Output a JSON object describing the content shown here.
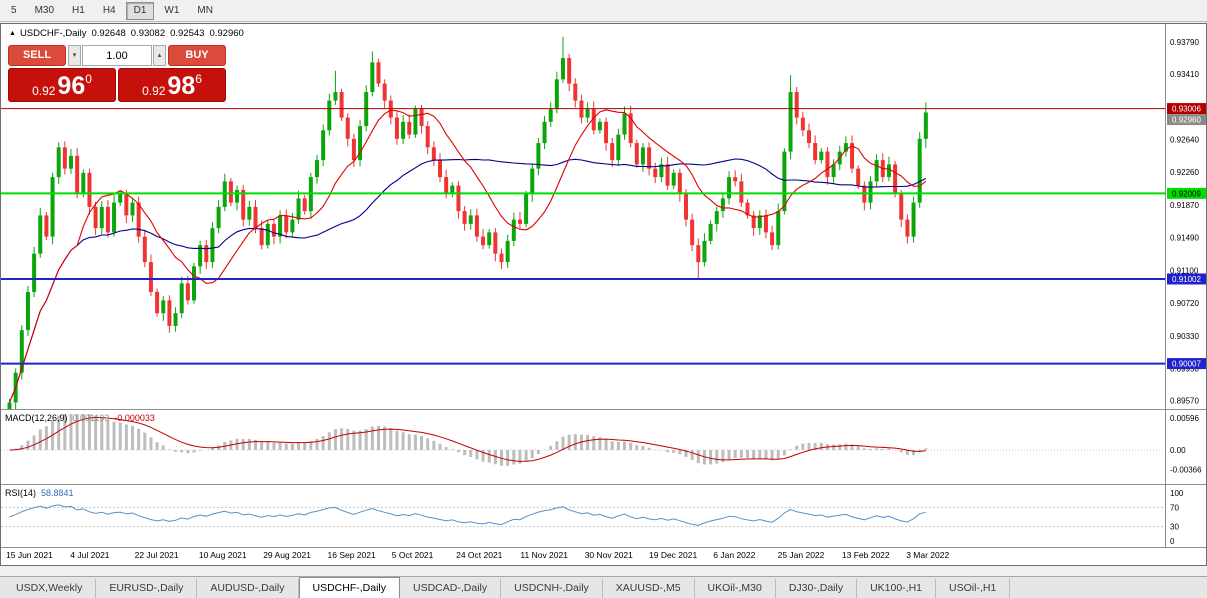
{
  "toolbar": {
    "timeframes": [
      "5",
      "M30",
      "H1",
      "H4",
      "D1",
      "W1",
      "MN"
    ],
    "active_timeframe": "D1"
  },
  "header": {
    "collapse": "▲",
    "title": "USDCHF-,Daily",
    "open": "0.92648",
    "high": "0.93082",
    "low": "0.92543",
    "close": "0.92960"
  },
  "trade": {
    "sell_label": "SELL",
    "buy_label": "BUY",
    "volume": "1.00",
    "spin_down": "▾",
    "spin_up": "▴",
    "bid_small": "0.92",
    "bid_big": "96",
    "bid_sup": "0",
    "ask_small": "0.92",
    "ask_big": "98",
    "ask_sup": "6"
  },
  "price_axis": {
    "ticks": [
      "0.93790",
      "0.93410",
      "0.93030",
      "0.92640",
      "0.92260",
      "0.91870",
      "0.91490",
      "0.91100",
      "0.90720",
      "0.90330",
      "0.89950",
      "0.89570"
    ]
  },
  "hlines": [
    {
      "name": "resistance-line",
      "price": 0.93006,
      "label": "0.93006",
      "color": "#b20000",
      "text": "#ffffff",
      "width": 1
    },
    {
      "name": "pivot-line",
      "price": 0.92009,
      "label": "0.92009",
      "color": "#00dd00",
      "text": "#000000",
      "width": 2
    },
    {
      "name": "support-line-1",
      "price": 0.91002,
      "label": "0.91002",
      "color": "#2222cc",
      "text": "#ffffff",
      "width": 2
    },
    {
      "name": "support-line-2",
      "price": 0.90007,
      "label": "0.90007",
      "color": "#2222cc",
      "text": "#ffffff",
      "width": 2
    }
  ],
  "bid_marker": {
    "label": "0.92960",
    "color": "#8a8a8a",
    "text": "#ffffff"
  },
  "chart_data": {
    "type": "candlestick",
    "symbol": "USDCHF-",
    "timeframe": "Daily",
    "ylim": [
      0.8952,
      0.9393
    ],
    "last_ohlc": {
      "open": 0.92648,
      "high": 0.93082,
      "low": 0.92543,
      "close": 0.9296
    },
    "closes": [
      0.8955,
      0.899,
      0.904,
      0.9085,
      0.913,
      0.9175,
      0.915,
      0.922,
      0.9255,
      0.923,
      0.9245,
      0.92,
      0.9225,
      0.9185,
      0.916,
      0.9185,
      0.9155,
      0.919,
      0.92,
      0.9175,
      0.919,
      0.915,
      0.912,
      0.9085,
      0.906,
      0.9075,
      0.9045,
      0.906,
      0.9095,
      0.9075,
      0.9115,
      0.914,
      0.912,
      0.916,
      0.9185,
      0.9215,
      0.919,
      0.9205,
      0.917,
      0.9185,
      0.916,
      0.914,
      0.9165,
      0.915,
      0.9175,
      0.9155,
      0.917,
      0.9195,
      0.918,
      0.922,
      0.924,
      0.9275,
      0.931,
      0.932,
      0.929,
      0.9265,
      0.924,
      0.928,
      0.932,
      0.9355,
      0.933,
      0.931,
      0.929,
      0.9265,
      0.9285,
      0.927,
      0.93,
      0.928,
      0.9255,
      0.924,
      0.922,
      0.92,
      0.921,
      0.918,
      0.9165,
      0.9175,
      0.915,
      0.914,
      0.9155,
      0.913,
      0.912,
      0.9145,
      0.917,
      0.9165,
      0.92,
      0.923,
      0.926,
      0.9285,
      0.93,
      0.9335,
      0.936,
      0.933,
      0.931,
      0.929,
      0.93,
      0.9275,
      0.9285,
      0.926,
      0.924,
      0.927,
      0.9295,
      0.926,
      0.9235,
      0.9255,
      0.923,
      0.922,
      0.9235,
      0.921,
      0.9225,
      0.92,
      0.917,
      0.914,
      0.912,
      0.9145,
      0.9165,
      0.918,
      0.9195,
      0.922,
      0.9215,
      0.919,
      0.9175,
      0.916,
      0.9175,
      0.9155,
      0.914,
      0.918,
      0.925,
      0.932,
      0.929,
      0.9275,
      0.926,
      0.924,
      0.925,
      0.922,
      0.9235,
      0.925,
      0.926,
      0.923,
      0.921,
      0.919,
      0.9215,
      0.924,
      0.922,
      0.9235,
      0.92,
      0.917,
      0.915,
      0.919,
      0.9265,
      0.9296
    ],
    "wick_overrides": {
      "26": {
        "low": 0.9037
      },
      "53": {
        "high": 0.9345
      },
      "59": {
        "high": 0.9368
      },
      "90": {
        "high": 0.9385
      },
      "112": {
        "low": 0.91
      },
      "127": {
        "high": 0.934
      },
      "149": {
        "high": 0.9308,
        "low": 0.9254
      }
    },
    "colors": {
      "up": "#0ca60c",
      "down": "#ef3434",
      "ma_fast": "#e00000",
      "ma_slow": "#00008b"
    },
    "ma_fast_period": 12,
    "ma_slow_period": 35
  },
  "macd": {
    "label": "MACD(12,26,9)",
    "main_value": "0.001193",
    "signal_value": "-0.000033",
    "axis": [
      "0.00596",
      "0.00",
      "-0.00366"
    ],
    "params": {
      "fast": 12,
      "slow": 26,
      "signal": 9
    }
  },
  "rsi": {
    "label": "RSI(14)",
    "value": "58.8841",
    "axis": [
      "100",
      "70",
      "30",
      "0"
    ],
    "period": 14,
    "levels": [
      70,
      30
    ]
  },
  "date_axis": [
    "15 Jun 2021",
    "4 Jul 2021",
    "22 Jul 2021",
    "10 Aug 2021",
    "29 Aug 2021",
    "16 Sep 2021",
    "5 Oct 2021",
    "24 Oct 2021",
    "11 Nov 2021",
    "30 Nov 2021",
    "19 Dec 2021",
    "6 Jan 2022",
    "25 Jan 2022",
    "13 Feb 2022",
    "3 Mar 2022"
  ],
  "tabs": {
    "items": [
      "USDX,Weekly",
      "EURUSD-,Daily",
      "AUDUSD-,Daily",
      "USDCHF-,Daily",
      "USDCAD-,Daily",
      "USDCNH-,Daily",
      "XAUUSD-,M5",
      "UKOil-,M30",
      "DJ30-,Daily",
      "UK100-,H1",
      "USOil-,H1"
    ],
    "active_index": 3
  }
}
